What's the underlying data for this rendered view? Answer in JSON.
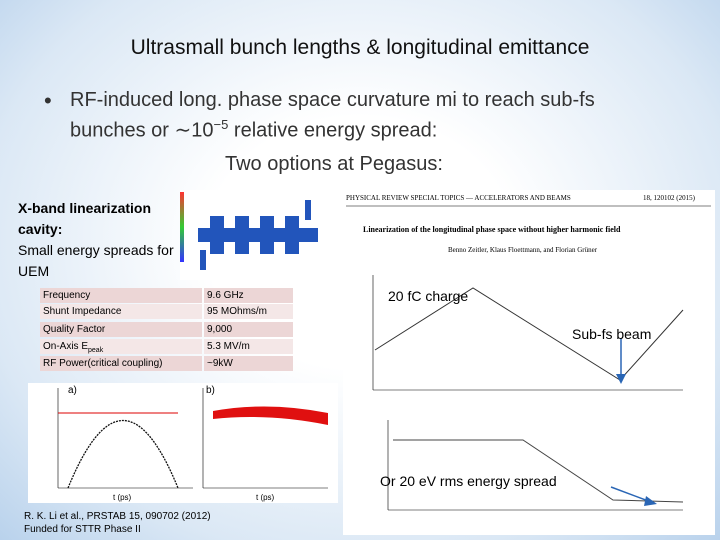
{
  "title": "Ultrasmall bunch lengths & longitudinal emittance",
  "bullet": {
    "line1": "RF-induced long. phase space curvature mi to reach sub-fs",
    "line2_pre": "bunches or ∼10",
    "line2_sup": "−5",
    "line2_post": "relative energy spread:"
  },
  "subheading": "Two options at Pegasus:",
  "left_box": {
    "heading": "X-band linearization cavity:",
    "text": "Small energy spreads for UEM"
  },
  "table": {
    "rows": [
      [
        "Frequency",
        "9.6 GHz"
      ],
      [
        "Shunt Impedance",
        "95 MOhms/m"
      ],
      [
        "Quality Factor",
        "9,000"
      ],
      [
        "On-Axis E",
        "5.3 MV/m"
      ],
      [
        "RF Power(critical coupling)",
        "~9kW"
      ]
    ],
    "sub": "peak"
  },
  "plots": {
    "a": "a)",
    "b": "b)",
    "xlabel_a": "t (ps)",
    "xlabel_b": "t (ps)"
  },
  "citation": "R. K. Li et al., PRSTAB 15, 090702 (2012)",
  "funding": "Funded for STTR Phase II",
  "paper": {
    "journal": "PHYSICAL REVIEW SPECIAL TOPICS — ACCELERATORS AND BEAMS",
    "ref": "18, 120102 (2015)",
    "title": "Linearization of the longitudinal phase space without higher harmonic field",
    "authors": "Benno Zeitler, Klaus Floettmann, and Florian Grüner"
  },
  "annotations": {
    "charge": "20 fC charge",
    "subfs": "Sub-fs beam",
    "spread": "Or 20 eV rms energy spread"
  }
}
